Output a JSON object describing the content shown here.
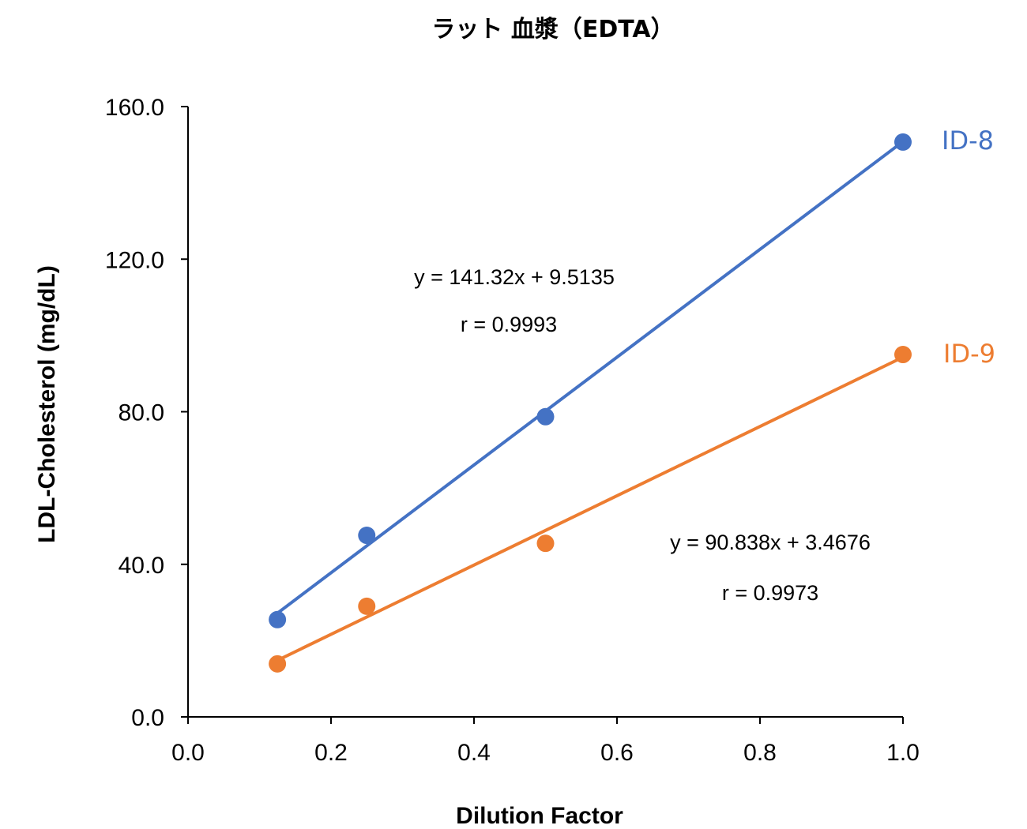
{
  "chart_data": {
    "type": "scatter",
    "title": "ラット 血漿（EDTA）",
    "xlabel": "Dilution Factor",
    "ylabel": "LDL-Cholesterol (mg/dL)",
    "xlim": [
      0,
      1.0
    ],
    "ylim": [
      0,
      160
    ],
    "xticks": [
      "0.0",
      "0.2",
      "0.4",
      "0.6",
      "0.8",
      "1.0"
    ],
    "yticks": [
      "0.0",
      "40.0",
      "80.0",
      "120.0",
      "160.0"
    ],
    "grid": false,
    "series": [
      {
        "name": "ID-8",
        "color": "#4472C4",
        "x": [
          0.125,
          0.25,
          0.5,
          1.0
        ],
        "y": [
          25.5,
          47.6,
          78.7,
          150.7
        ],
        "trendline": {
          "slope": 141.32,
          "intercept": 9.5135
        },
        "equation": "y = 141.32x + 9.5135",
        "r": "r = 0.9993"
      },
      {
        "name": "ID-9",
        "color": "#ED7D31",
        "x": [
          0.125,
          0.25,
          0.5,
          1.0
        ],
        "y": [
          13.9,
          29.0,
          45.5,
          95.0
        ],
        "trendline": {
          "slope": 90.838,
          "intercept": 3.4676
        },
        "equation": "y = 90.838x + 3.4676",
        "r": "r = 0.9973"
      }
    ]
  }
}
